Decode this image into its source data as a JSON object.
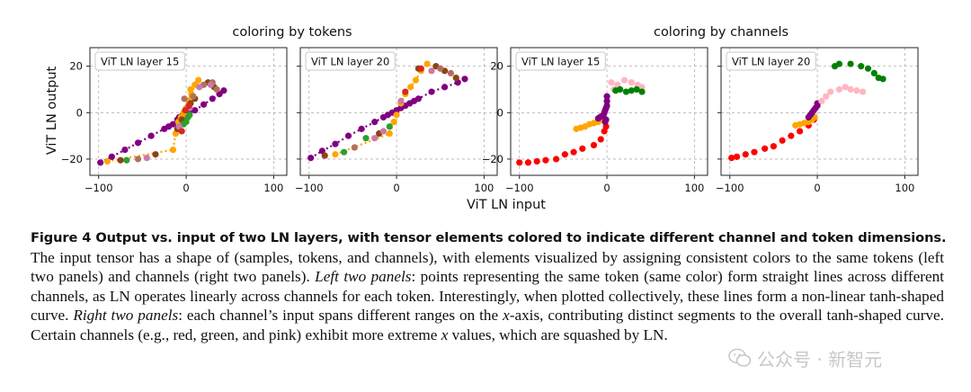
{
  "figure": {
    "group_titles": [
      "coloring by tokens",
      "coloring by channels"
    ],
    "xlabel": "ViT LN input",
    "ylabel": "ViT LN output",
    "panels": [
      {
        "title": "ViT LN layer 15"
      },
      {
        "title": "ViT LN layer 20"
      },
      {
        "title": "ViT LN layer 15"
      },
      {
        "title": "ViT LN layer 20"
      }
    ]
  },
  "chart_data": [
    {
      "type": "scatter",
      "title": "ViT LN layer 15",
      "xlim": [
        -110,
        115
      ],
      "ylim": [
        -27,
        28
      ],
      "xticks": [
        -100,
        0,
        100
      ],
      "yticks": [
        -20,
        0,
        20
      ],
      "grid": true,
      "series": [
        {
          "color": "#800080",
          "points": [
            [
              -98,
              -21.5
            ],
            [
              -85,
              -19
            ],
            [
              -70,
              -16
            ],
            [
              -55,
              -13
            ],
            [
              -40,
              -10
            ],
            [
              -25,
              -7
            ],
            [
              -15,
              -5
            ],
            [
              -5,
              -2.5
            ],
            [
              0,
              -1
            ],
            [
              10,
              1
            ],
            [
              20,
              3.5
            ],
            [
              30,
              6
            ],
            [
              38,
              8
            ],
            [
              43,
              9.5
            ],
            [
              -10,
              -3
            ],
            [
              -8,
              -2
            ],
            [
              -4,
              -1
            ],
            [
              2,
              0
            ],
            [
              5,
              1
            ],
            [
              -20,
              -6
            ]
          ]
        },
        {
          "color": "#ffa500",
          "points": [
            [
              -90,
              -21
            ],
            [
              -15,
              -16
            ],
            [
              -12,
              -9
            ],
            [
              -9,
              -4
            ],
            [
              -6,
              -2
            ],
            [
              -3,
              0
            ],
            [
              0,
              2
            ],
            [
              3,
              5
            ],
            [
              6,
              8
            ],
            [
              10,
              12
            ],
            [
              14,
              14
            ],
            [
              5,
              10
            ],
            [
              -2,
              -1
            ]
          ]
        },
        {
          "color": "#8b4513",
          "points": [
            [
              -75,
              -20.5
            ],
            [
              -35,
              -18
            ],
            [
              -10,
              -7
            ],
            [
              -5,
              -3
            ],
            [
              5,
              4
            ],
            [
              10,
              6
            ],
            [
              25,
              13
            ],
            [
              32,
              11
            ]
          ]
        },
        {
          "color": "#2ca02c",
          "points": [
            [
              -68,
              -20.5
            ],
            [
              -3,
              -5
            ],
            [
              0,
              -4
            ],
            [
              2,
              -2
            ],
            [
              4,
              -1
            ]
          ]
        },
        {
          "color": "#b07060",
          "points": [
            [
              -55,
              -20
            ],
            [
              -2,
              6
            ],
            [
              8,
              7
            ],
            [
              30,
              13
            ],
            [
              20,
              12
            ],
            [
              35,
              10
            ]
          ]
        },
        {
          "color": "#cc79a7",
          "points": [
            [
              -45,
              -19.5
            ],
            [
              -8,
              -6
            ],
            [
              4,
              2
            ],
            [
              15,
              11
            ],
            [
              28,
              12
            ]
          ]
        },
        {
          "color": "#d62728",
          "points": [
            [
              -5,
              -8
            ],
            [
              -1,
              1
            ],
            [
              3,
              3
            ]
          ]
        }
      ]
    },
    {
      "type": "scatter",
      "title": "ViT LN layer 20",
      "xlim": [
        -110,
        115
      ],
      "ylim": [
        -27,
        28
      ],
      "xticks": [
        -100,
        0,
        100
      ],
      "yticks": [
        -20,
        0,
        20
      ],
      "grid": true,
      "series": [
        {
          "color": "#800080",
          "points": [
            [
              -98,
              -19.5
            ],
            [
              -85,
              -16.5
            ],
            [
              -70,
              -13.5
            ],
            [
              -55,
              -10
            ],
            [
              -40,
              -7
            ],
            [
              -25,
              -4
            ],
            [
              -15,
              -2
            ],
            [
              -5,
              0
            ],
            [
              5,
              2
            ],
            [
              15,
              4
            ],
            [
              25,
              6
            ],
            [
              40,
              9
            ],
            [
              55,
              11
            ],
            [
              70,
              13
            ],
            [
              78,
              14.5
            ],
            [
              -10,
              -1
            ],
            [
              0,
              1
            ],
            [
              10,
              3
            ],
            [
              20,
              5
            ]
          ]
        },
        {
          "color": "#ffa500",
          "points": [
            [
              -70,
              -18
            ],
            [
              -8,
              -9
            ],
            [
              -3,
              -4
            ],
            [
              0,
              -1
            ],
            [
              5,
              4
            ],
            [
              10,
              8
            ],
            [
              16,
              11
            ],
            [
              22,
              14
            ],
            [
              28,
              18
            ],
            [
              35,
              21
            ]
          ]
        },
        {
          "color": "#8b4513",
          "points": [
            [
              -82,
              -18.5
            ],
            [
              -20,
              -9
            ],
            [
              25,
              19
            ],
            [
              45,
              20
            ],
            [
              55,
              18
            ],
            [
              68,
              15
            ]
          ]
        },
        {
          "color": "#2ca02c",
          "points": [
            [
              -60,
              -17
            ],
            [
              -35,
              -11
            ],
            [
              -8,
              -6
            ]
          ]
        },
        {
          "color": "#b07060",
          "points": [
            [
              -48,
              -15
            ],
            [
              50,
              19
            ],
            [
              62,
              17
            ]
          ]
        },
        {
          "color": "#cc79a7",
          "points": [
            [
              -25,
              -11
            ],
            [
              -15,
              -8
            ],
            [
              5,
              5
            ],
            [
              40,
              18
            ]
          ]
        },
        {
          "color": "#d62728",
          "points": [
            [
              10,
              9
            ],
            [
              28,
              19
            ]
          ]
        }
      ]
    },
    {
      "type": "scatter",
      "title": "ViT LN layer 15",
      "xlim": [
        -110,
        115
      ],
      "ylim": [
        -27,
        28
      ],
      "xticks": [
        -100,
        0,
        100
      ],
      "yticks": [
        -20,
        0,
        20
      ],
      "grid": true,
      "series": [
        {
          "color": "#ff0000",
          "points": [
            [
              -100,
              -21.5
            ],
            [
              -90,
              -21.5
            ],
            [
              -80,
              -21
            ],
            [
              -70,
              -20.5
            ],
            [
              -58,
              -20
            ],
            [
              -48,
              -18
            ],
            [
              -38,
              -17
            ],
            [
              -28,
              -15.5
            ],
            [
              -15,
              -14
            ],
            [
              -7,
              -11.5
            ],
            [
              -3,
              -8
            ],
            [
              -1,
              -6
            ]
          ]
        },
        {
          "color": "#ffa500",
          "points": [
            [
              -35,
              -7
            ],
            [
              -30,
              -6.5
            ],
            [
              -25,
              -6
            ],
            [
              -20,
              -5
            ],
            [
              -15,
              -4.5
            ],
            [
              -10,
              -4
            ],
            [
              -5,
              -3
            ]
          ]
        },
        {
          "color": "#800080",
          "points": [
            [
              -10,
              -2.5
            ],
            [
              -8,
              -2
            ],
            [
              -6,
              -1.5
            ],
            [
              -4,
              -1
            ],
            [
              -3,
              0
            ],
            [
              -2,
              1
            ],
            [
              -1,
              2
            ],
            [
              0,
              3
            ],
            [
              0,
              5
            ],
            [
              0,
              7
            ],
            [
              -1,
              -3
            ],
            [
              -2,
              -4
            ]
          ]
        },
        {
          "color": "#ffb6c1",
          "points": [
            [
              5,
              13
            ],
            [
              12,
              12
            ],
            [
              20,
              14
            ],
            [
              28,
              13
            ],
            [
              35,
              12
            ],
            [
              40,
              11
            ],
            [
              8,
              10
            ]
          ]
        },
        {
          "color": "#008000",
          "points": [
            [
              15,
              10
            ],
            [
              22,
              9
            ],
            [
              28,
              9.5
            ],
            [
              34,
              10
            ],
            [
              40,
              9
            ],
            [
              10,
              9.5
            ]
          ]
        }
      ]
    },
    {
      "type": "scatter",
      "title": "ViT LN layer 20",
      "xlim": [
        -110,
        115
      ],
      "ylim": [
        -27,
        28
      ],
      "xticks": [
        -100,
        0,
        100
      ],
      "yticks": [
        -20,
        0,
        20
      ],
      "grid": true,
      "series": [
        {
          "color": "#ff0000",
          "points": [
            [
              -98,
              -19.5
            ],
            [
              -92,
              -19
            ],
            [
              -82,
              -18
            ],
            [
              -72,
              -17
            ],
            [
              -60,
              -15.5
            ],
            [
              -50,
              -14.5
            ],
            [
              -40,
              -12
            ],
            [
              -30,
              -10
            ],
            [
              -20,
              -8
            ],
            [
              -10,
              -5.5
            ],
            [
              -4,
              -3
            ]
          ]
        },
        {
          "color": "#ffa500",
          "points": [
            [
              -25,
              -5.5
            ],
            [
              -20,
              -5
            ],
            [
              -15,
              -4.5
            ],
            [
              -10,
              -4
            ],
            [
              -6,
              -3
            ],
            [
              -3,
              -2
            ]
          ]
        },
        {
          "color": "#800080",
          "points": [
            [
              -8,
              -1
            ],
            [
              -6,
              0
            ],
            [
              -4,
              1
            ],
            [
              -2,
              2
            ],
            [
              0,
              3
            ],
            [
              0,
              4
            ],
            [
              -10,
              -2
            ]
          ]
        },
        {
          "color": "#ffb6c1",
          "points": [
            [
              5,
              5
            ],
            [
              10,
              7
            ],
            [
              15,
              9
            ],
            [
              25,
              10
            ],
            [
              32,
              11
            ],
            [
              38,
              10
            ],
            [
              45,
              9.5
            ],
            [
              52,
              9
            ]
          ]
        },
        {
          "color": "#008000",
          "points": [
            [
              20,
              20
            ],
            [
              25,
              21
            ],
            [
              38,
              21
            ],
            [
              50,
              20
            ],
            [
              58,
              19
            ],
            [
              65,
              17
            ],
            [
              70,
              15
            ],
            [
              75,
              14.5
            ]
          ]
        }
      ]
    }
  ],
  "caption": {
    "head": "Figure 4  Output vs. input of two LN layers, with tensor elements colored to indicate different channel and token dimensions.",
    "s1": "The input tensor has a shape of (samples, tokens, and channels), with elements visualized by assigning consistent colors to the same tokens (left two panels) and channels (right two panels). ",
    "em1": "Left two panels",
    "s2": ": points representing the same token (same color) form straight lines across different channels, as LN operates linearly across channels for each token. Interestingly, when plotted collectively, these lines form a non-linear tanh-shaped curve. ",
    "em2": "Right two panels",
    "s3": ": each channel’s input spans different ranges on the ",
    "x1": "x",
    "s4": "-axis, contributing distinct segments to the overall tanh-shaped curve. Certain channels (e.g., red, green, and pink) exhibit more extreme ",
    "x2": "x",
    "s5": " values, which are squashed by LN."
  },
  "watermark": {
    "text": "公众号 · 新智元"
  }
}
